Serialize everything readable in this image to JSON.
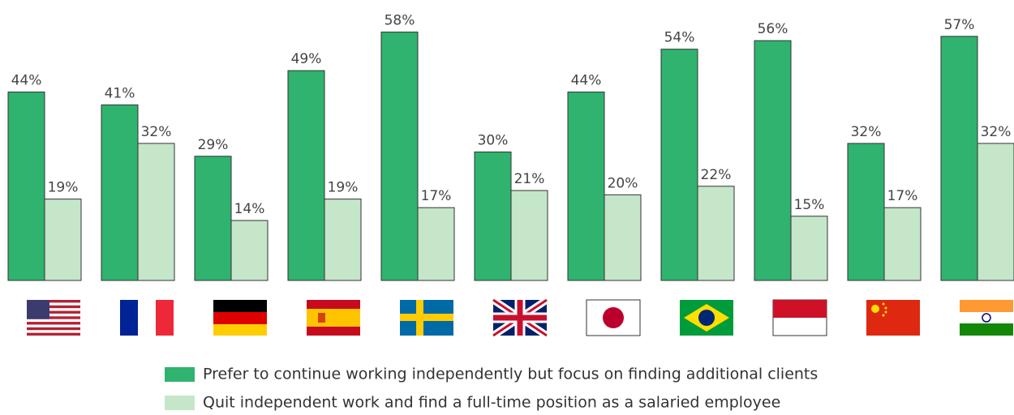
{
  "chart_data": {
    "type": "bar",
    "categories": [
      null,
      null,
      null,
      null,
      null,
      null,
      null,
      null,
      null,
      null,
      null
    ],
    "ylim": [
      0,
      60
    ],
    "series": [
      {
        "name": "Prefer to continue working independently but focus on finding additional clients",
        "color": "#2fb36f",
        "values": [
          44,
          41,
          29,
          49,
          58,
          30,
          44,
          54,
          56,
          32,
          57
        ],
        "value_labels": [
          "44%",
          "41%",
          "29%",
          "49%",
          "58%",
          "30%",
          "44%",
          "54%",
          "56%",
          "32%",
          "57%"
        ]
      },
      {
        "name": "Quit independent work and find a full-time position as a salaried employee",
        "color": "#c5e6c9",
        "values": [
          19,
          32,
          14,
          19,
          17,
          21,
          20,
          22,
          15,
          17,
          32
        ],
        "value_labels": [
          "19%",
          "32%",
          "14%",
          "19%",
          "17%",
          "21%",
          "20%",
          "22%",
          "15%",
          "17%",
          "32%"
        ]
      }
    ]
  }
}
